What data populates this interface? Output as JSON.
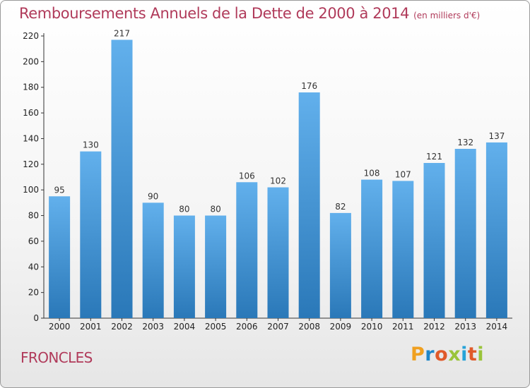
{
  "header": {
    "title": "Remboursements Annuels de la Dette de 2000 à 2014",
    "subtitle": "(en milliers d'€)"
  },
  "footer": {
    "commune": "FRONCLES",
    "logo_letters": [
      "P",
      "r",
      "o",
      "x",
      "i",
      "t",
      "i"
    ]
  },
  "colors": {
    "title": "#b03a5a",
    "bar_top": "#62b0ec",
    "bar_bottom": "#2a78b8"
  },
  "chart_data": {
    "type": "bar",
    "title": "Remboursements Annuels de la Dette de 2000 à 2014",
    "subtitle": "(en milliers d'€)",
    "categories": [
      "2000",
      "2001",
      "2002",
      "2003",
      "2004",
      "2005",
      "2006",
      "2007",
      "2008",
      "2009",
      "2010",
      "2011",
      "2012",
      "2013",
      "2014"
    ],
    "values": [
      95,
      130,
      217,
      90,
      80,
      80,
      106,
      102,
      176,
      82,
      108,
      107,
      121,
      132,
      137
    ],
    "ylim": [
      0,
      220
    ],
    "yticks": [
      0,
      20,
      40,
      60,
      80,
      100,
      120,
      140,
      160,
      180,
      200,
      220
    ],
    "grid": false,
    "data_labels": true,
    "legend": "none"
  }
}
